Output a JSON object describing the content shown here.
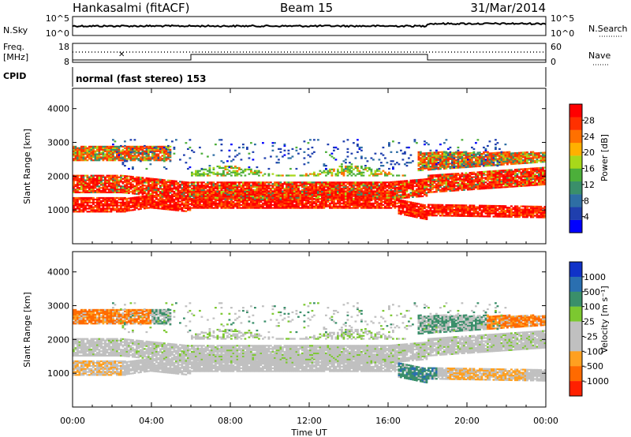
{
  "header": {
    "station": "Hankasalmi (fitACF)",
    "beam": "Beam 15",
    "date": "31/Mar/2014"
  },
  "panels": {
    "nsky": {
      "left_label": "N.Sky",
      "left_ticks": [
        "10^5",
        "10^0"
      ],
      "right_ticks": [
        "10^5",
        "10^0"
      ],
      "right_label": "N.Search"
    },
    "freq": {
      "left_label_1": "Freq.",
      "left_label_2": "[MHz]",
      "left_ticks": [
        "18",
        "8"
      ],
      "right_ticks": [
        "60",
        "0"
      ],
      "right_label": "Nave"
    },
    "cpid": {
      "label": "CPID",
      "mode": "normal (fast stereo) 153"
    }
  },
  "colors": {
    "power_scale": [
      "#0000ff",
      "#1f3fae",
      "#2e6ea4",
      "#3a8f6a",
      "#4caf3a",
      "#a8d81a",
      "#ffb000",
      "#ff7000",
      "#ff3000",
      "#ff0000"
    ],
    "velocity_scale": [
      "#1032c8",
      "#2a6fb0",
      "#3a8f6a",
      "#7cc830",
      "#c0c0c0",
      "#c0c0c0",
      "#ffa020",
      "#ff6a00",
      "#ff2000"
    ]
  },
  "chart_data": [
    {
      "type": "heatmap",
      "name": "power",
      "ylabel": "Slant Range [km]",
      "yticks": [
        1000,
        2000,
        3000,
        4000
      ],
      "ylim": [
        0,
        4600
      ],
      "xlim_hours": [
        0,
        24
      ],
      "colorbar_label": "Power [dB]",
      "colorbar_ticks": [
        "4",
        "8",
        "12",
        "16",
        "20",
        "24",
        "28"
      ],
      "colorbar_range": [
        0,
        32
      ]
    },
    {
      "type": "heatmap",
      "name": "velocity",
      "ylabel": "Slant Range [km]",
      "yticks": [
        1000,
        2000,
        3000,
        4000
      ],
      "ylim": [
        0,
        4600
      ],
      "xlim_hours": [
        0,
        24
      ],
      "colorbar_label": "Velocity [m s⁻¹]",
      "colorbar_ticks": [
        "1000",
        "500",
        "100",
        "25",
        "-25",
        "-100",
        "-500",
        "-1000"
      ]
    }
  ],
  "x_axis": {
    "ticks": [
      "00:00",
      "04:00",
      "08:00",
      "12:00",
      "16:00",
      "20:00",
      "00:00"
    ],
    "label": "Time UT"
  },
  "y_tick_labels": [
    "1000",
    "2000",
    "3000",
    "4000"
  ]
}
